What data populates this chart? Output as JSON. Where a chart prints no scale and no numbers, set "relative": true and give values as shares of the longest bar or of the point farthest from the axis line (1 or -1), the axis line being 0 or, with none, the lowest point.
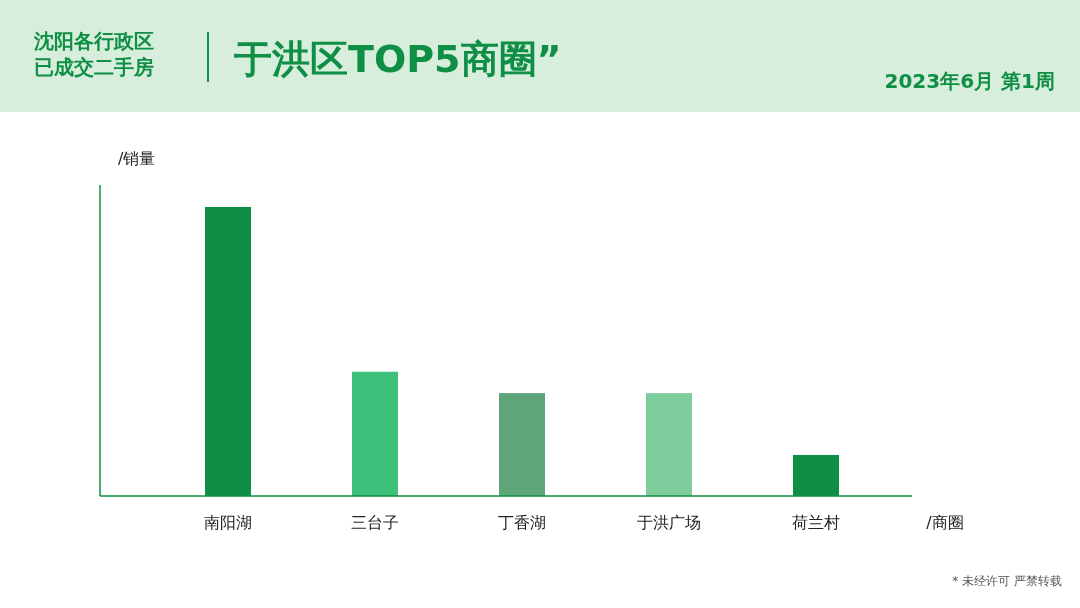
{
  "chart_data": {
    "type": "bar",
    "title": "于洪区TOP5商圈”",
    "subtitle": "沈阳各行政区已成交二手房",
    "xlabel": "/商圈",
    "ylabel": "/销量",
    "relative": true,
    "categories": [
      "南阳湖",
      "三台子",
      "丁香湖",
      "于洪广场",
      "荷兰村"
    ],
    "values": [
      1,
      0.43,
      0.356,
      0.356,
      0.142
    ],
    "colors": [
      "#0f8f45",
      "#3cc07a",
      "#5fa57a",
      "#7ecb9c",
      "#0f8f45"
    ],
    "annotations": [
      "2023年6月 第1周",
      "* 未经许可 严禁转载"
    ]
  }
}
